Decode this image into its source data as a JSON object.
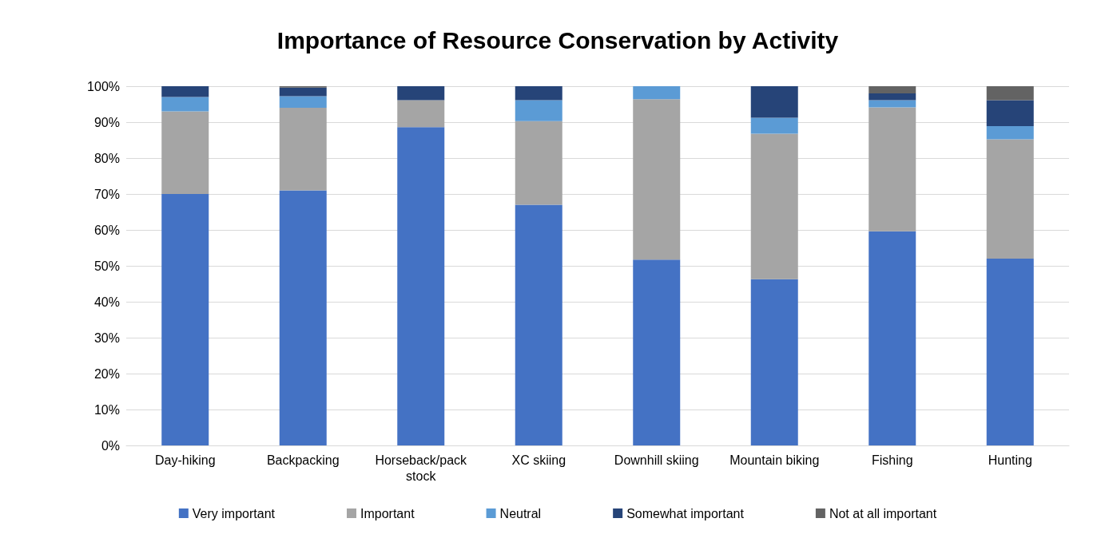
{
  "chart_data": {
    "type": "bar",
    "title": "Importance of Resource Conservation by Activity",
    "categories": [
      "Day-hiking",
      "Backpacking",
      "Horseback/pack stock",
      "XC skiing",
      "Downhill skiing",
      "Mountain biking",
      "Fishing",
      "Hunting"
    ],
    "stacked": true,
    "series": [
      {
        "name": "Very important",
        "color": "#4472c4",
        "values": [
          70,
          71,
          88.6,
          67,
          51.7,
          46.3,
          59.6,
          52
        ]
      },
      {
        "name": "Important",
        "color": "#a5a5a5",
        "values": [
          23,
          23,
          7.5,
          23.3,
          44.7,
          40.5,
          34.5,
          33.2
        ]
      },
      {
        "name": "Neutral",
        "color": "#5b9bd5",
        "values": [
          4,
          3.2,
          0,
          5.8,
          3.6,
          4.4,
          2,
          3.7
        ]
      },
      {
        "name": "Somewhat important",
        "color": "#264478",
        "values": [
          3,
          2.4,
          3.9,
          3.9,
          0,
          8.8,
          1.9,
          7.2
        ]
      },
      {
        "name": "Not at all important",
        "color": "#636363",
        "values": [
          0,
          0.4,
          0,
          0,
          0,
          0,
          2,
          3.9
        ]
      }
    ],
    "ylim": [
      0,
      100
    ],
    "yticks": [
      {
        "value": 0,
        "label": "0%"
      },
      {
        "value": 10,
        "label": "10%"
      },
      {
        "value": 20,
        "label": "20%"
      },
      {
        "value": 30,
        "label": "30%"
      },
      {
        "value": 40,
        "label": "40%"
      },
      {
        "value": 50,
        "label": "50%"
      },
      {
        "value": 60,
        "label": "60%"
      },
      {
        "value": 70,
        "label": "70%"
      },
      {
        "value": 80,
        "label": "80%"
      },
      {
        "value": 90,
        "label": "90%"
      },
      {
        "value": 100,
        "label": "100%"
      }
    ],
    "grid": "y",
    "legend": "bottom"
  }
}
